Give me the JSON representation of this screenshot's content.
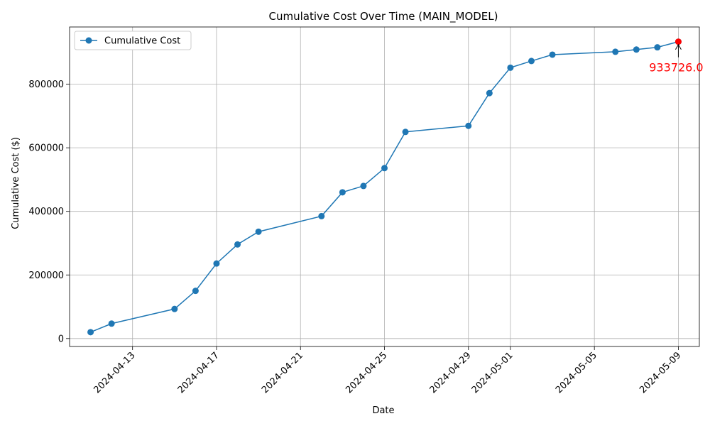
{
  "chart_data": {
    "type": "line",
    "title": "Cumulative Cost Over Time (MAIN_MODEL)",
    "xlabel": "Date",
    "ylabel": "Cumulative Cost ($)",
    "grid": true,
    "legend_placement": "top-left",
    "x_ticks": [
      "2024-04-13",
      "2024-04-17",
      "2024-04-21",
      "2024-04-25",
      "2024-04-29",
      "2024-05-01",
      "2024-05-05",
      "2024-05-09"
    ],
    "y_ticks": [
      0,
      200000,
      400000,
      600000,
      800000
    ],
    "xlim": [
      "2024-04-10",
      "2024-05-10"
    ],
    "ylim": [
      -25000,
      980000
    ],
    "series": [
      {
        "name": "Cumulative Cost",
        "color": "#1f77b4",
        "points": [
          {
            "x": "2024-04-11",
            "y": 20000
          },
          {
            "x": "2024-04-12",
            "y": 47000
          },
          {
            "x": "2024-04-15",
            "y": 93000
          },
          {
            "x": "2024-04-16",
            "y": 150000
          },
          {
            "x": "2024-04-17",
            "y": 236000
          },
          {
            "x": "2024-04-18",
            "y": 296000
          },
          {
            "x": "2024-04-19",
            "y": 336000
          },
          {
            "x": "2024-04-22",
            "y": 385000
          },
          {
            "x": "2024-04-23",
            "y": 460000
          },
          {
            "x": "2024-04-24",
            "y": 480000
          },
          {
            "x": "2024-04-25",
            "y": 536000
          },
          {
            "x": "2024-04-26",
            "y": 650000
          },
          {
            "x": "2024-04-29",
            "y": 669000
          },
          {
            "x": "2024-04-30",
            "y": 772000
          },
          {
            "x": "2024-05-01",
            "y": 852000
          },
          {
            "x": "2024-05-02",
            "y": 873000
          },
          {
            "x": "2024-05-03",
            "y": 893000
          },
          {
            "x": "2024-05-06",
            "y": 902000
          },
          {
            "x": "2024-05-07",
            "y": 909000
          },
          {
            "x": "2024-05-08",
            "y": 916000
          },
          {
            "x": "2024-05-09",
            "y": 933726
          }
        ]
      }
    ],
    "annotation": {
      "text": "933726.0",
      "x": "2024-05-09",
      "y": 933726,
      "color": "#ff0000"
    }
  }
}
